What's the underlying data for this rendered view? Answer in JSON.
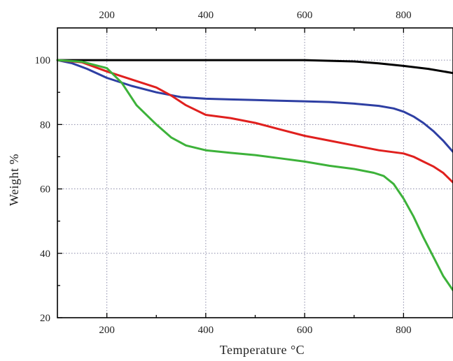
{
  "chart_data": {
    "type": "line",
    "title": "",
    "xlabel": "Temperature °C",
    "ylabel": "Weight %",
    "xlim": [
      100,
      900
    ],
    "ylim": [
      20,
      110
    ],
    "x_ticks": [
      200,
      400,
      600,
      800
    ],
    "y_ticks": [
      20,
      40,
      60,
      80,
      100
    ],
    "grid": true,
    "top_axis_ticks": true,
    "legend": "none",
    "series": [
      {
        "color": "#000000",
        "x": [
          100,
          150,
          200,
          300,
          400,
          500,
          600,
          700,
          750,
          800,
          850,
          900
        ],
        "y": [
          100,
          100,
          100,
          100,
          100,
          100,
          100,
          99.6,
          99,
          98.2,
          97.3,
          96
        ]
      },
      {
        "color": "#2e3fa3",
        "x": [
          100,
          130,
          160,
          200,
          250,
          300,
          350,
          400,
          450,
          500,
          550,
          600,
          650,
          700,
          750,
          780,
          800,
          820,
          840,
          860,
          880,
          900
        ],
        "y": [
          100,
          99,
          97.3,
          94.5,
          92,
          90,
          88.5,
          88,
          87.8,
          87.6,
          87.4,
          87.2,
          87,
          86.5,
          85.8,
          85,
          84,
          82.5,
          80.5,
          78,
          75,
          71.5
        ]
      },
      {
        "color": "#e0201e",
        "x": [
          100,
          150,
          200,
          250,
          300,
          330,
          360,
          400,
          450,
          500,
          550,
          600,
          650,
          700,
          750,
          800,
          820,
          840,
          860,
          880,
          900
        ],
        "y": [
          100,
          99.3,
          96.5,
          94,
          91.5,
          89,
          86,
          83,
          82,
          80.5,
          78.5,
          76.5,
          75,
          73.5,
          72,
          71,
          70,
          68.5,
          67,
          65,
          62
        ]
      },
      {
        "color": "#3db23a",
        "x": [
          100,
          150,
          200,
          230,
          260,
          300,
          330,
          360,
          400,
          450,
          500,
          550,
          600,
          650,
          700,
          740,
          760,
          780,
          800,
          820,
          840,
          860,
          880,
          900
        ],
        "y": [
          100,
          99.5,
          97.5,
          93,
          86,
          80,
          76,
          73.5,
          72,
          71.2,
          70.5,
          69.5,
          68.5,
          67.2,
          66.2,
          65,
          64,
          61.5,
          57,
          51.5,
          45,
          39,
          33,
          28.5
        ]
      }
    ]
  }
}
